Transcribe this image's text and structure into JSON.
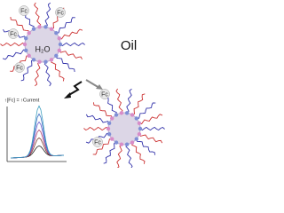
{
  "oil_label": "Oil",
  "water_label": "H₂O",
  "micelle_1_labels": [
    "Fc",
    "Fc",
    "Fc",
    "Fc"
  ],
  "micelle_2_labels": [
    "Fc",
    "Fc"
  ],
  "current_annotation": "↑[Fc] = ↑Current"
}
